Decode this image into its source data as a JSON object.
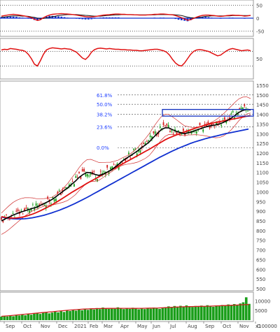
{
  "colors": {
    "price_up": "#1a9e1a",
    "price_down": "#d22020",
    "ma_short": "#000000",
    "ma_mid": "#e01010",
    "ma_long": "#1030d0",
    "bollinger": "#d03030",
    "fib_text": "#2040ff",
    "box_stroke": "#1030c0",
    "volume": "#1a9e1a",
    "volume_ma": "#d02020",
    "macd_line": "#e01010",
    "macd_hist": "#1030d0",
    "rsi_line": "#e01010"
  },
  "chart_data": [
    {
      "type": "line",
      "panel": "macd",
      "y_ticks": [
        "50",
        "0",
        "-50"
      ],
      "ylim": [
        -60,
        60
      ],
      "series": [
        {
          "values": [
            8,
            10,
            12,
            14,
            15,
            14,
            12,
            10,
            8,
            5,
            2,
            -4,
            -9,
            -6,
            2,
            8,
            12,
            15,
            16,
            17,
            18,
            17,
            16,
            15,
            14,
            12,
            10,
            8,
            6,
            5,
            5,
            6,
            8,
            10,
            12,
            13,
            14,
            15,
            16,
            16,
            15,
            15,
            14,
            14,
            13,
            13,
            12,
            12,
            12,
            13,
            14,
            15,
            15,
            16,
            16,
            15,
            14,
            13,
            10,
            6,
            2,
            -3,
            -8,
            -6,
            -1,
            4,
            8,
            11,
            12,
            12,
            11,
            10,
            8,
            7,
            8,
            10,
            11,
            12,
            11,
            11,
            10,
            8,
            9,
            11
          ]
        },
        {
          "values": [
            4,
            5,
            6,
            8,
            9,
            9,
            9,
            8,
            8,
            7,
            5,
            3,
            0,
            -2,
            -1,
            1,
            3,
            6,
            8,
            10,
            12,
            13,
            14,
            14,
            14,
            14,
            13,
            12,
            11,
            10,
            9,
            8,
            8,
            8,
            9,
            10,
            11,
            12,
            13,
            13,
            14,
            14,
            14,
            14,
            14,
            13,
            13,
            13,
            13,
            13,
            13,
            13,
            14,
            14,
            14,
            14,
            14,
            14,
            13,
            12,
            10,
            7,
            4,
            2,
            1,
            2,
            3,
            5,
            7,
            8,
            9,
            9,
            9,
            9,
            9,
            9,
            9,
            10,
            10,
            10,
            10,
            10,
            10,
            10
          ]
        }
      ]
    },
    {
      "type": "line",
      "panel": "rsi",
      "y_ticks": [
        "50"
      ],
      "ylim": [
        0,
        100
      ],
      "series": [
        {
          "values": [
            74,
            76,
            75,
            78,
            77,
            76,
            74,
            73,
            70,
            62,
            50,
            35,
            30,
            45,
            62,
            74,
            78,
            80,
            79,
            78,
            77,
            78,
            77,
            76,
            72,
            68,
            60,
            52,
            48,
            56,
            68,
            75,
            78,
            79,
            78,
            77,
            78,
            77,
            76,
            76,
            75,
            75,
            74,
            74,
            73,
            73,
            72,
            72,
            73,
            74,
            75,
            76,
            76,
            74,
            72,
            68,
            60,
            48,
            38,
            32,
            30,
            38,
            50,
            62,
            70,
            74,
            75,
            74,
            72,
            70,
            66,
            62,
            58,
            60,
            66,
            72,
            76,
            78,
            76,
            74,
            72,
            73,
            74,
            72
          ]
        }
      ]
    },
    {
      "type": "line",
      "panel": "price",
      "y_ticks": [
        "1550",
        "1500",
        "1450",
        "1400",
        "1350",
        "1300",
        "1250",
        "1200",
        "1150",
        "1100",
        "1050",
        "1000",
        "950",
        "900",
        "850",
        "800",
        "750",
        "700",
        "650",
        "600",
        "550",
        "500"
      ],
      "ylim": [
        500,
        1550
      ],
      "xlabels": [
        "Sep",
        "Oct",
        "Nov",
        "Dec",
        "2021",
        "Feb",
        "Mar",
        "Apr",
        "May",
        "Jun",
        "Jul",
        "Aug",
        "Sep",
        "Oct",
        "Nov",
        "D"
      ],
      "fibonacci": [
        {
          "label": "61.8%",
          "value": 1500
        },
        {
          "label": "50.0%",
          "value": 1452
        },
        {
          "label": "38.2%",
          "value": 1400
        },
        {
          "label": "23.6%",
          "value": 1335
        },
        {
          "label": "0.0%",
          "value": 1228
        }
      ],
      "box": {
        "x": [
          210,
          238
        ],
        "y": [
          1398,
          1418
        ]
      },
      "series": [
        {
          "values": [
            850,
            860,
            870,
            880,
            888,
            895,
            902,
            908,
            915,
            920,
            930,
            940,
            950,
            960,
            975,
            990,
            1005,
            1020,
            1038,
            1055,
            1075,
            1090,
            1100,
            1098,
            1090,
            1085,
            1090,
            1100,
            1110,
            1125,
            1140,
            1158,
            1172,
            1185,
            1198,
            1212,
            1228,
            1242,
            1258,
            1280,
            1300,
            1320,
            1330,
            1330,
            1320,
            1312,
            1305,
            1300,
            1305,
            1310,
            1318,
            1325,
            1332,
            1338,
            1342,
            1345,
            1350,
            1358,
            1368,
            1380,
            1395,
            1410,
            1420,
            1425,
            1423
          ]
        },
        {
          "values": [
            872,
            868,
            865,
            864,
            865,
            868,
            872,
            878,
            885,
            893,
            902,
            912,
            922,
            933,
            945,
            957,
            970,
            983,
            996,
            1008,
            1020,
            1032,
            1044,
            1055,
            1066,
            1077,
            1088,
            1099,
            1110,
            1121,
            1132,
            1143,
            1154,
            1165,
            1176,
            1187,
            1198,
            1209,
            1220,
            1232,
            1244,
            1256,
            1268,
            1278,
            1286,
            1294,
            1302,
            1309,
            1316,
            1323,
            1330,
            1336,
            1342,
            1348,
            1354,
            1358,
            1362,
            1366,
            1370,
            1374,
            1378,
            1382,
            1386,
            1390,
            1393
          ]
        },
        {
          "values": [
            870,
            866,
            863,
            861,
            860,
            860,
            861,
            863,
            866,
            870,
            874,
            879,
            885,
            891,
            898,
            905,
            913,
            921,
            930,
            939,
            949,
            959,
            969,
            980,
            991,
            1002,
            1013,
            1024,
            1035,
            1046,
            1057,
            1068,
            1079,
            1090,
            1101,
            1112,
            1123,
            1134,
            1145,
            1156,
            1167,
            1178,
            1188,
            1198,
            1208,
            1217,
            1226,
            1234,
            1242,
            1250,
            1257,
            1263,
            1269,
            1275,
            1280,
            1285,
            1290,
            1295,
            1300,
            1304,
            1308,
            1312,
            1316,
            1320,
            1324
          ]
        }
      ]
    },
    {
      "type": "bar",
      "panel": "volume",
      "y_ticks": [
        "10000",
        "5000"
      ],
      "annotations": [
        "x100000"
      ],
      "ylim": [
        0,
        13000
      ],
      "values": [
        1800,
        2100,
        1900,
        2300,
        2000,
        2600,
        2400,
        2900,
        2500,
        3100,
        2800,
        3300,
        3600,
        3200,
        3800,
        4100,
        3500,
        3900,
        4400,
        4000,
        4600,
        4200,
        5000,
        4700,
        5200,
        4900,
        5600,
        5100,
        5800,
        5300,
        6000,
        5500,
        6200,
        5700,
        6500,
        6000,
        5800,
        6300,
        5900,
        6600,
        6100,
        5700,
        6200,
        5800,
        6400,
        6000,
        5600,
        6100,
        5700,
        6300,
        5900,
        6500,
        6100,
        5800,
        6400,
        6700,
        7100,
        6800,
        7300,
        6900,
        7400,
        7000,
        7600,
        7200,
        6800,
        7300,
        6900,
        7500,
        7100,
        7700,
        7300,
        6900,
        7600,
        7200,
        7800,
        7400,
        8100,
        7700,
        8300,
        7900,
        8600,
        9200,
        11800,
        8400
      ],
      "ma": [
        2000,
        2300,
        2700,
        3100,
        3500,
        3900,
        4300,
        4700,
        5100,
        5400,
        5700,
        5900,
        6000,
        6050,
        6100,
        6100,
        6050,
        6100,
        6200,
        6300,
        6500,
        6700,
        6900,
        7000,
        7100,
        7200,
        7350,
        7500,
        7700,
        7900,
        8100
      ]
    }
  ]
}
